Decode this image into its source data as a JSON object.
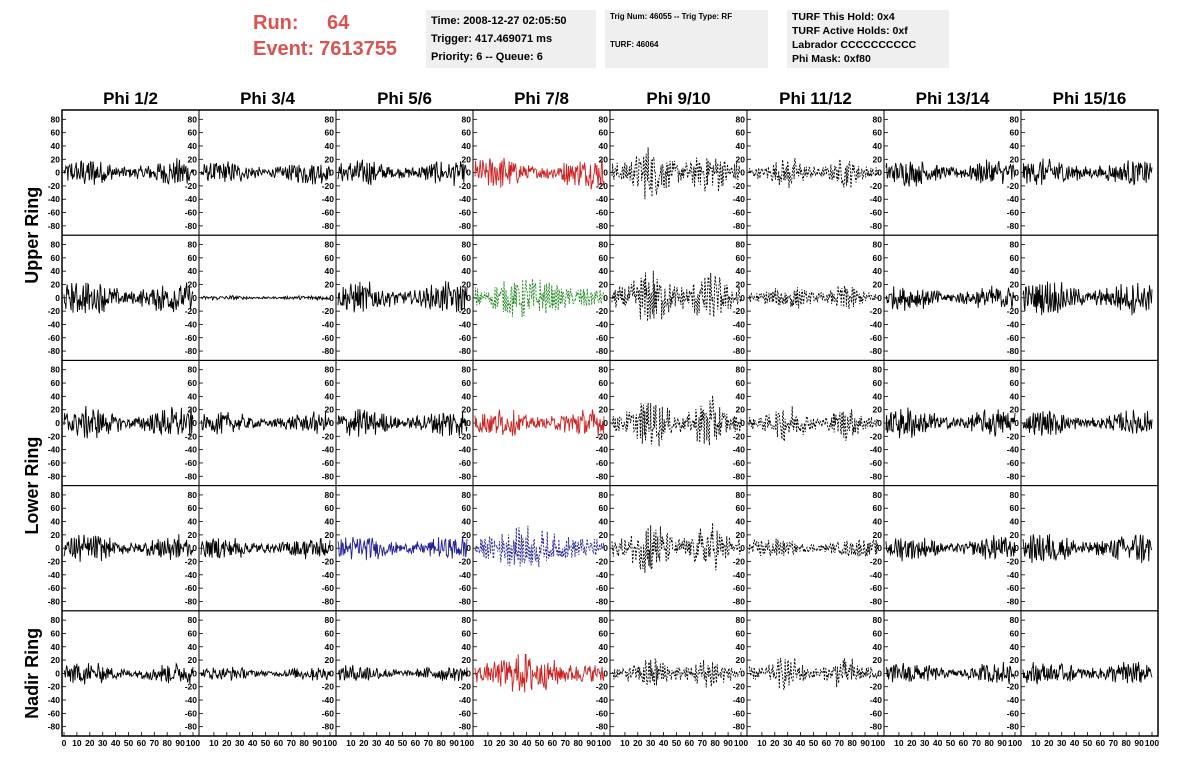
{
  "header": {
    "run_label": "Run:",
    "run_value": "64",
    "event_label": "Event:",
    "event_value": "7613755",
    "title_color": "#d9534f"
  },
  "info_time": {
    "time": "Time: 2008-12-27 02:05:50",
    "trigger": "Trigger: 417.469071 ms",
    "priority": "Priority: 6 -- Queue: 6"
  },
  "info_trig": {
    "trig": "Trig Num: 46055 -- Trig Type: RF",
    "turf": "TURF: 46064"
  },
  "info_turf": {
    "this_hold": "TURF This Hold: 0x4",
    "active_holds": "TURF Active Holds: 0xf",
    "labrador": "Labrador CCCCCCCCCC",
    "phi_mask": "Phi Mask: 0xf80"
  },
  "chart_data": {
    "type": "line",
    "columns": [
      "Phi 1/2",
      "Phi 3/4",
      "Phi 5/6",
      "Phi 7/8",
      "Phi 9/10",
      "Phi 11/12",
      "Phi 13/14",
      "Phi 15/16"
    ],
    "ring_labels": [
      {
        "text": "Upper Ring",
        "rows": [
          0,
          1
        ]
      },
      {
        "text": "Lower Ring",
        "rows": [
          2,
          3
        ]
      },
      {
        "text": "Nadir Ring",
        "rows": [
          4
        ]
      }
    ],
    "yticks": [
      "80",
      "60",
      "40",
      "20",
      "0",
      "-20",
      "-40",
      "-60",
      "-80"
    ],
    "ylim": [
      -85,
      85
    ],
    "xlim": [
      0,
      100
    ],
    "xticks_first": [
      "0",
      "10",
      "20",
      "30",
      "40",
      "50",
      "60",
      "70",
      "80",
      "90",
      "100"
    ],
    "xticks_other": [
      "10",
      "20",
      "30",
      "40",
      "50",
      "60",
      "70",
      "80",
      "90",
      "100"
    ],
    "colors": {
      "default": "#000000",
      "red": "#cc2222",
      "green": "#228822",
      "blue": "#222299"
    },
    "panels": [
      [
        {
          "style": "solid",
          "color": "default",
          "amp": 18,
          "env": "flat"
        },
        {
          "style": "solid",
          "color": "default",
          "amp": 15,
          "env": "flat"
        },
        {
          "style": "solid",
          "color": "default",
          "amp": 16,
          "env": "flat"
        },
        {
          "style": "solid",
          "color": "red",
          "amp": 20,
          "env": "flat"
        },
        {
          "style": "dashed",
          "color": "default",
          "amp": 35,
          "env": "double"
        },
        {
          "style": "dashed",
          "color": "default",
          "amp": 20,
          "env": "double"
        },
        {
          "style": "solid",
          "color": "default",
          "amp": 17,
          "env": "flat"
        },
        {
          "style": "solid",
          "color": "default",
          "amp": 18,
          "env": "flat"
        }
      ],
      [
        {
          "style": "solid",
          "color": "default",
          "amp": 22,
          "env": "flat"
        },
        {
          "style": "solid",
          "color": "default",
          "amp": 3,
          "env": "flat"
        },
        {
          "style": "solid",
          "color": "default",
          "amp": 20,
          "env": "flat"
        },
        {
          "style": "dashed",
          "color": "green",
          "amp": 28,
          "env": "bump"
        },
        {
          "style": "dashed",
          "color": "default",
          "amp": 38,
          "env": "double"
        },
        {
          "style": "dashed",
          "color": "default",
          "amp": 18,
          "env": "double"
        },
        {
          "style": "solid",
          "color": "default",
          "amp": 16,
          "env": "flat"
        },
        {
          "style": "solid",
          "color": "default",
          "amp": 22,
          "env": "flat"
        }
      ],
      [
        {
          "style": "solid",
          "color": "default",
          "amp": 20,
          "env": "flat"
        },
        {
          "style": "solid",
          "color": "default",
          "amp": 14,
          "env": "flat"
        },
        {
          "style": "solid",
          "color": "default",
          "amp": 18,
          "env": "flat"
        },
        {
          "style": "solid",
          "color": "red",
          "amp": 18,
          "env": "flat"
        },
        {
          "style": "dashed",
          "color": "default",
          "amp": 34,
          "env": "double"
        },
        {
          "style": "dashed",
          "color": "default",
          "amp": 24,
          "env": "double"
        },
        {
          "style": "solid",
          "color": "default",
          "amp": 20,
          "env": "flat"
        },
        {
          "style": "solid",
          "color": "default",
          "amp": 16,
          "env": "flat"
        }
      ],
      [
        {
          "style": "solid",
          "color": "default",
          "amp": 18,
          "env": "flat"
        },
        {
          "style": "solid",
          "color": "default",
          "amp": 15,
          "env": "flat"
        },
        {
          "style": "solid",
          "color": "blue",
          "amp": 16,
          "env": "flat"
        },
        {
          "style": "dashed",
          "color": "blue",
          "amp": 28,
          "env": "bump"
        },
        {
          "style": "dashed",
          "color": "default",
          "amp": 36,
          "env": "double"
        },
        {
          "style": "dashed",
          "color": "default",
          "amp": 12,
          "env": "flat"
        },
        {
          "style": "solid",
          "color": "default",
          "amp": 16,
          "env": "flat"
        },
        {
          "style": "solid",
          "color": "default",
          "amp": 20,
          "env": "flat"
        }
      ],
      [
        {
          "style": "solid",
          "color": "default",
          "amp": 14,
          "env": "flat"
        },
        {
          "style": "solid",
          "color": "default",
          "amp": 9,
          "env": "flat"
        },
        {
          "style": "solid",
          "color": "default",
          "amp": 11,
          "env": "flat"
        },
        {
          "style": "solid",
          "color": "red",
          "amp": 26,
          "env": "bump"
        },
        {
          "style": "dashed",
          "color": "default",
          "amp": 22,
          "env": "double"
        },
        {
          "style": "dashed",
          "color": "default",
          "amp": 22,
          "env": "double"
        },
        {
          "style": "solid",
          "color": "default",
          "amp": 14,
          "env": "flat"
        },
        {
          "style": "solid",
          "color": "default",
          "amp": 16,
          "env": "flat"
        }
      ]
    ]
  }
}
